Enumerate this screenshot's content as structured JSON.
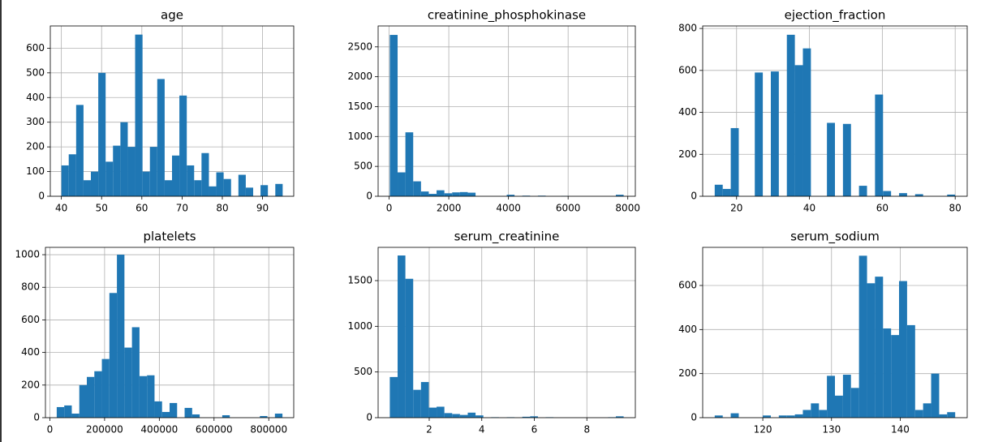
{
  "chart_data": [
    {
      "type": "histogram",
      "title": "age",
      "color": "#1f77b4",
      "grid": true,
      "bins": [
        40,
        41.83,
        43.67,
        45.5,
        47.33,
        49.17,
        51,
        52.83,
        54.67,
        56.5,
        58.33,
        60.17,
        62,
        63.83,
        65.67,
        67.5,
        69.33,
        71.17,
        73,
        74.83,
        76.67,
        78.5,
        80.33,
        82.17,
        84,
        85.83,
        87.67,
        89.5,
        91.33,
        93.17,
        95
      ],
      "values": [
        125,
        170,
        370,
        65,
        100,
        500,
        140,
        205,
        300,
        200,
        655,
        100,
        200,
        475,
        65,
        165,
        408,
        125,
        65,
        175,
        40,
        97,
        70,
        0,
        87,
        35,
        0,
        45,
        0,
        50
      ],
      "xlim": [
        37.25,
        97.75
      ],
      "ylim": [
        0,
        690
      ],
      "xticks": [
        40,
        50,
        60,
        70,
        80,
        90
      ],
      "yticks": [
        0,
        100,
        200,
        300,
        400,
        500,
        600
      ]
    },
    {
      "type": "histogram",
      "title": "creatinine_phosphokinase",
      "color": "#1f77b4",
      "grid": true,
      "bins": [
        23,
        284.3,
        545.5,
        806.8,
        1068.1,
        1329.4,
        1590.6,
        1851.9,
        2113.2,
        2374.4,
        2635.7,
        2897,
        3158.2,
        3419.5,
        3680.8,
        3942,
        4203.3,
        4464.6,
        4725.9,
        4987.1,
        5248.4,
        5509.7,
        5770.9,
        6032.2,
        6293.5,
        6554.7,
        6816,
        7077.3,
        7338.6,
        7599.8,
        7861
      ],
      "values": [
        2700,
        400,
        1070,
        250,
        80,
        40,
        100,
        50,
        65,
        70,
        60,
        0,
        0,
        0,
        0,
        25,
        0,
        10,
        0,
        10,
        0,
        0,
        5,
        0,
        0,
        0,
        0,
        0,
        0,
        25
      ],
      "xlim": [
        -369,
        8253
      ],
      "ylim": [
        0,
        2850
      ],
      "xticks": [
        0,
        2000,
        4000,
        6000,
        8000
      ],
      "yticks": [
        0,
        500,
        1000,
        1500,
        2000,
        2500
      ]
    },
    {
      "type": "histogram",
      "title": "ejection_fraction",
      "color": "#1f77b4",
      "grid": true,
      "bins": [
        14,
        16.2,
        18.4,
        20.6,
        22.8,
        25,
        27.2,
        29.4,
        31.6,
        33.8,
        36,
        38.2,
        40.4,
        42.6,
        44.8,
        47,
        49.2,
        51.4,
        53.6,
        55.8,
        58,
        60.2,
        62.4,
        64.6,
        66.8,
        69,
        71.2,
        73.4,
        75.6,
        77.8,
        80
      ],
      "values": [
        55,
        35,
        325,
        0,
        0,
        590,
        0,
        595,
        0,
        770,
        625,
        705,
        0,
        0,
        350,
        0,
        345,
        0,
        50,
        0,
        485,
        25,
        0,
        15,
        0,
        10,
        0,
        0,
        0,
        8
      ],
      "xlim": [
        10.7,
        83.3
      ],
      "ylim": [
        0,
        812
      ],
      "xticks": [
        20,
        40,
        60,
        80
      ],
      "yticks": [
        0,
        200,
        400,
        600,
        800
      ]
    },
    {
      "type": "histogram",
      "title": "platelets",
      "color": "#1f77b4",
      "grid": true,
      "bins": [
        25100,
        52597,
        80093,
        107590,
        135087,
        162584,
        190080,
        217577,
        245074,
        272570,
        300067,
        327564,
        355060,
        382557,
        410054,
        437551,
        465047,
        492544,
        520041,
        547537,
        575034,
        602531,
        630027,
        657524,
        685021,
        712518,
        740014,
        767511,
        795008,
        822504,
        850000
      ],
      "values": [
        65,
        75,
        25,
        200,
        250,
        285,
        360,
        765,
        1000,
        430,
        555,
        255,
        260,
        100,
        35,
        90,
        0,
        60,
        20,
        0,
        0,
        0,
        15,
        0,
        0,
        0,
        0,
        10,
        0,
        25
      ],
      "xlim": [
        -16145,
        891245
      ],
      "ylim": [
        0,
        1045
      ],
      "xticks": [
        0,
        200000,
        400000,
        600000,
        800000
      ],
      "yticks": [
        0,
        200,
        400,
        600,
        800,
        1000
      ]
    },
    {
      "type": "histogram",
      "title": "serum_creatinine",
      "color": "#1f77b4",
      "grid": true,
      "bins": [
        0.5,
        0.797,
        1.093,
        1.39,
        1.687,
        1.983,
        2.28,
        2.577,
        2.873,
        3.17,
        3.467,
        3.763,
        4.06,
        4.357,
        4.653,
        4.95,
        5.247,
        5.543,
        5.84,
        6.137,
        6.433,
        6.73,
        7.027,
        7.323,
        7.62,
        7.917,
        8.213,
        8.51,
        8.807,
        9.103,
        9.4
      ],
      "values": [
        445,
        1775,
        1520,
        305,
        390,
        110,
        120,
        50,
        40,
        30,
        55,
        25,
        0,
        5,
        0,
        5,
        0,
        10,
        15,
        0,
        5,
        0,
        0,
        0,
        0,
        0,
        0,
        0,
        5,
        15
      ],
      "xlim": [
        0.055,
        9.845
      ],
      "ylim": [
        0,
        1864
      ],
      "xticks": [
        2,
        4,
        6,
        8
      ],
      "yticks": [
        0,
        500,
        1000,
        1500
      ]
    },
    {
      "type": "histogram",
      "title": "serum_sodium",
      "color": "#1f77b4",
      "grid": true,
      "bins": [
        113,
        114.17,
        115.33,
        116.5,
        117.67,
        118.83,
        120,
        121.17,
        122.33,
        123.5,
        124.67,
        125.83,
        127,
        128.17,
        129.33,
        130.5,
        131.67,
        132.83,
        134,
        135.17,
        136.33,
        137.5,
        138.67,
        139.83,
        141,
        142.17,
        143.33,
        144.5,
        145.67,
        146.83,
        148
      ],
      "values": [
        10,
        0,
        20,
        0,
        0,
        0,
        10,
        0,
        10,
        10,
        15,
        35,
        65,
        35,
        190,
        100,
        195,
        135,
        735,
        610,
        640,
        405,
        375,
        620,
        420,
        35,
        65,
        200,
        15,
        25
      ],
      "xlim": [
        111.25,
        149.75
      ],
      "ylim": [
        0,
        773
      ],
      "xticks": [
        120,
        130,
        140
      ],
      "yticks": [
        0,
        200,
        400,
        600
      ]
    }
  ]
}
